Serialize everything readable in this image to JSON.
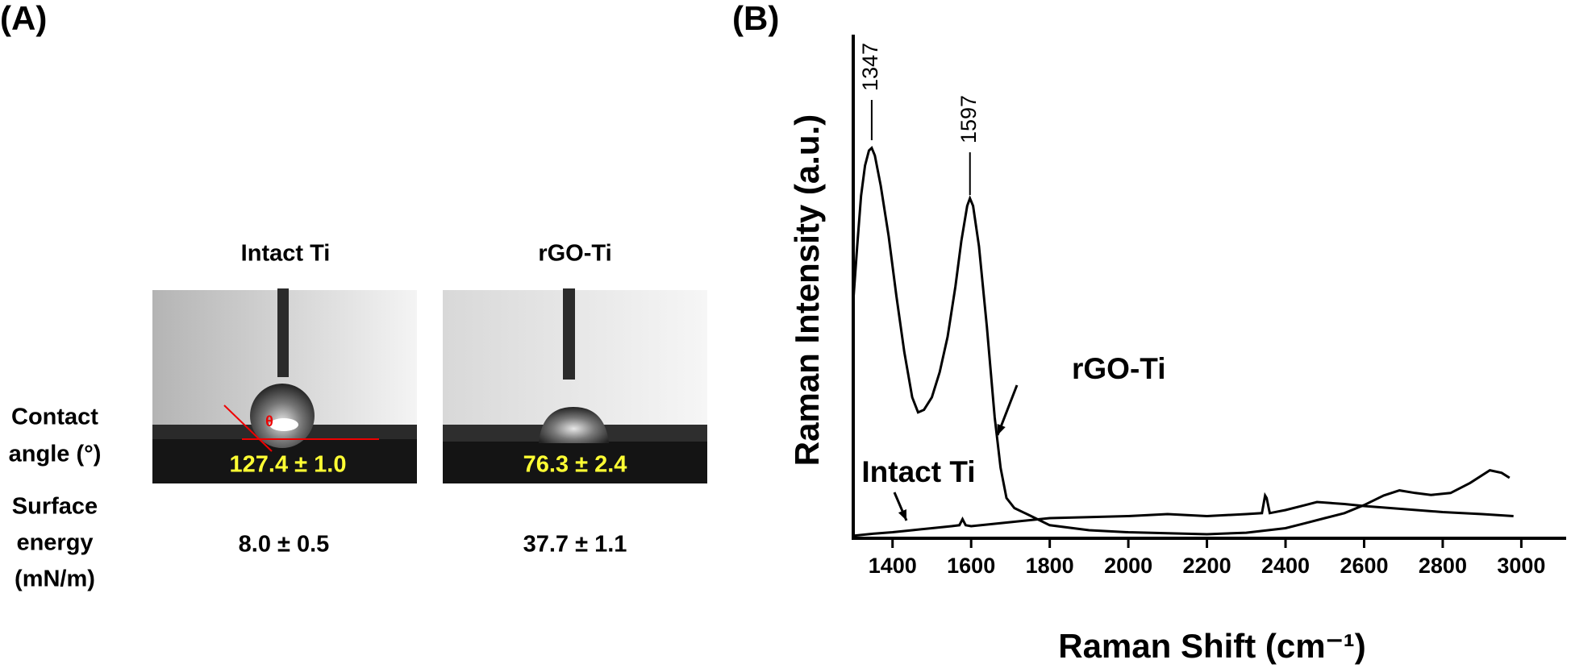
{
  "panel_a": {
    "label": "(A)",
    "samples": [
      "Intact Ti",
      "rGO-Ti"
    ],
    "angle_symbol": "θ",
    "contact_angle_label": [
      "Contact",
      "angle (°)"
    ],
    "contact_angles": [
      "127.4 ± 1.0",
      "76.3 ± 2.4"
    ],
    "surface_energy_label": [
      "Surface",
      "energy",
      "(mN/m)"
    ],
    "surface_energies": [
      "8.0 ± 0.5",
      "37.7 ± 1.1"
    ]
  },
  "chart_data": {
    "type": "line",
    "panel_label": "(B)",
    "xlabel": "Raman Shift (cm⁻¹)",
    "ylabel": "Raman Intensity (a.u.)",
    "xlim": [
      1300,
      3110
    ],
    "ylim": [
      0,
      100
    ],
    "xticks": [
      1400,
      1600,
      1800,
      2000,
      2200,
      2400,
      2600,
      2800,
      3000
    ],
    "series": [
      {
        "name": "rGO-Ti",
        "color": "#000000",
        "x": [
          1300,
          1310,
          1320,
          1330,
          1340,
          1347,
          1355,
          1370,
          1390,
          1410,
          1430,
          1450,
          1465,
          1480,
          1500,
          1520,
          1540,
          1560,
          1575,
          1590,
          1597,
          1605,
          1620,
          1640,
          1660,
          1675,
          1690,
          1710,
          1750,
          1800,
          1900,
          2000,
          2100,
          2200,
          2300,
          2400,
          2450,
          2500,
          2550,
          2600,
          2650,
          2690,
          2730,
          2770,
          2820,
          2870,
          2920,
          2950,
          2970
        ],
        "values": [
          47,
          58,
          68,
          74,
          77,
          77.5,
          76,
          70,
          60,
          48,
          37,
          28,
          25,
          25.5,
          28,
          33,
          40,
          50,
          59,
          66,
          67.5,
          66,
          58,
          42,
          24,
          14,
          8,
          6,
          4.5,
          2.6,
          1.6,
          1.2,
          1,
          0.8,
          1.1,
          2,
          3,
          4,
          5,
          6.6,
          8.5,
          9.5,
          9,
          8.6,
          9,
          11,
          13.5,
          13,
          12
        ]
      },
      {
        "name": "Intact Ti",
        "color": "#000000",
        "x": [
          1300,
          1350,
          1400,
          1450,
          1500,
          1550,
          1570,
          1578,
          1586,
          1600,
          1650,
          1700,
          1750,
          1800,
          1900,
          2000,
          2100,
          2200,
          2300,
          2340,
          2348,
          2352,
          2360,
          2400,
          2450,
          2480,
          2550,
          2600,
          2700,
          2800,
          2900,
          2980
        ],
        "values": [
          0.5,
          0.9,
          1.2,
          1.6,
          2,
          2.4,
          2.6,
          3.8,
          2.6,
          2.4,
          2.8,
          3.2,
          3.6,
          4,
          4.2,
          4.4,
          4.8,
          4.4,
          4.8,
          5,
          8.5,
          8,
          5,
          5.6,
          6.6,
          7.2,
          6.8,
          6.4,
          5.8,
          5.2,
          4.8,
          4.4
        ]
      }
    ],
    "annotations": [
      {
        "text": 1347,
        "x": 1347
      },
      {
        "text": 1597,
        "x": 1597
      }
    ]
  }
}
